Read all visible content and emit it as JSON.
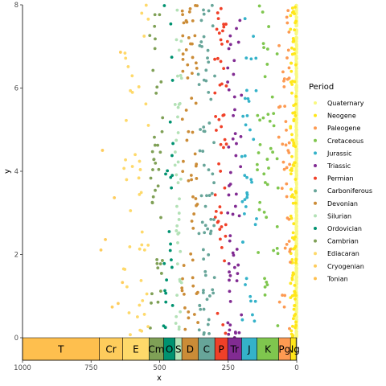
{
  "chart_data": {
    "type": "scatter",
    "title": "",
    "xlabel": "x",
    "ylabel": "y",
    "xlim": [
      1000,
      0
    ],
    "ylim": [
      0,
      8
    ],
    "x_reversed": true,
    "x_ticks": [
      1000,
      750,
      500,
      250,
      0
    ],
    "x_tick_labels": [
      "1000",
      "750",
      "500",
      "250",
      "0"
    ],
    "y_ticks": [
      0,
      2,
      4,
      6,
      8
    ],
    "y_tick_labels": [
      "0",
      "2",
      "4",
      "6",
      "8"
    ],
    "grid": false,
    "legend": {
      "title": "Period",
      "position": "right"
    },
    "points_per_period_approx": [
      600,
      110,
      45,
      45,
      40,
      55,
      50,
      70,
      65,
      40,
      25,
      40,
      45,
      8,
      0
    ],
    "series": [
      {
        "name": "Quaternary",
        "abbr": "",
        "color": "#F9F97F",
        "age_range": [
          0,
          2.58
        ]
      },
      {
        "name": "Neogene",
        "abbr": "Ng",
        "color": "#FFE619",
        "age_range": [
          2.58,
          23.03
        ]
      },
      {
        "name": "Paleogene",
        "abbr": "Pg",
        "color": "#FD9A52",
        "age_range": [
          23.03,
          66
        ]
      },
      {
        "name": "Cretaceous",
        "abbr": "K",
        "color": "#7FC64E",
        "age_range": [
          66,
          145
        ]
      },
      {
        "name": "Jurassic",
        "abbr": "J",
        "color": "#34B2C9",
        "age_range": [
          145,
          201.3
        ]
      },
      {
        "name": "Triassic",
        "abbr": "Tr",
        "color": "#812B92",
        "age_range": [
          201.3,
          251.9
        ]
      },
      {
        "name": "Permian",
        "abbr": "P",
        "color": "#F04028",
        "age_range": [
          251.9,
          298.9
        ]
      },
      {
        "name": "Carboniferous",
        "abbr": "C",
        "color": "#67A599",
        "age_range": [
          298.9,
          358.9
        ]
      },
      {
        "name": "Devonian",
        "abbr": "D",
        "color": "#CB8C37",
        "age_range": [
          358.9,
          419.2
        ]
      },
      {
        "name": "Silurian",
        "abbr": "S",
        "color": "#B3E1B6",
        "age_range": [
          419.2,
          443.8
        ]
      },
      {
        "name": "Ordovician",
        "abbr": "O",
        "color": "#009270",
        "age_range": [
          443.8,
          485.4
        ]
      },
      {
        "name": "Cambrian",
        "abbr": "Cm",
        "color": "#7FA056",
        "age_range": [
          485.4,
          538.8
        ]
      },
      {
        "name": "Ediacaran",
        "abbr": "E",
        "color": "#FED96A",
        "age_range": [
          538.8,
          635
        ]
      },
      {
        "name": "Cryogenian",
        "abbr": "Cr",
        "color": "#FECC5C",
        "age_range": [
          635,
          720
        ]
      },
      {
        "name": "Tonian",
        "abbr": "T",
        "color": "#FEBF4E",
        "age_range": [
          720,
          1000
        ]
      }
    ]
  }
}
